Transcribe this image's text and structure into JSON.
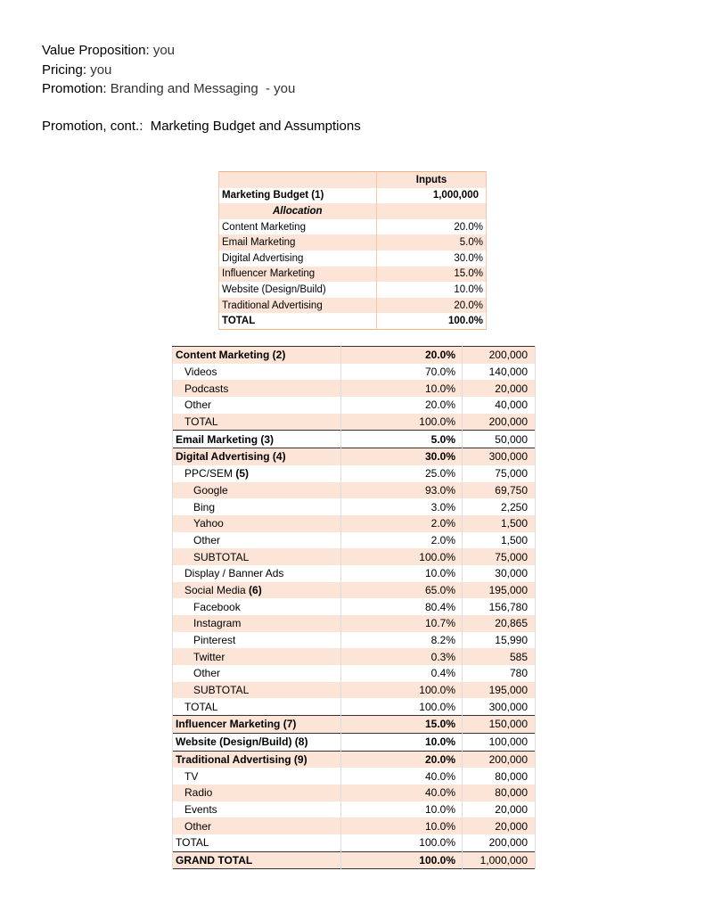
{
  "header": {
    "value_proposition": {
      "label": "Value Proposition:",
      "text": "you"
    },
    "pricing": {
      "label": "Pricing:",
      "text": "you"
    },
    "promotion": {
      "label": "Promotion:",
      "text": "Branding and Messaging  - you"
    },
    "section_title": "Promotion, cont.:  Marketing Budget and Assumptions"
  },
  "inputs_table": {
    "column_header": "Inputs",
    "budget": {
      "label": "Marketing Budget (1)",
      "value": "1,000,000"
    },
    "allocation_header": "Allocation",
    "rows": [
      [
        "Content Marketing",
        "20.0%"
      ],
      [
        "Email Marketing",
        "5.0%"
      ],
      [
        "Digital Advertising",
        "30.0%"
      ],
      [
        "Influencer Marketing",
        "15.0%"
      ],
      [
        "Website (Design/Build)",
        "10.0%"
      ],
      [
        "Traditional Advertising",
        "20.0%"
      ]
    ],
    "total": {
      "label": "TOTAL",
      "value": "100.0%"
    }
  },
  "budget_table": {
    "rows": [
      {
        "label": "Content Marketing (2)",
        "pct": "20.0%",
        "amount": "200,000"
      },
      {
        "label": "Videos",
        "pct": "70.0%",
        "amount": "140,000"
      },
      {
        "label": "Podcasts",
        "pct": "10.0%",
        "amount": "20,000"
      },
      {
        "label": "Other",
        "pct": "20.0%",
        "amount": "40,000"
      },
      {
        "label": "TOTAL",
        "pct": "100.0%",
        "amount": "200,000"
      },
      {
        "label": "Email Marketing (3)",
        "pct": "5.0%",
        "amount": "50,000"
      },
      {
        "label": "Digital Advertising (4)",
        "pct": "30.0%",
        "amount": "300,000"
      },
      {
        "label": "PPC/SEM",
        "note": "(5)",
        "pct": "25.0%",
        "amount": "75,000"
      },
      {
        "label": "Google",
        "pct": "93.0%",
        "amount": "69,750"
      },
      {
        "label": "Bing",
        "pct": "3.0%",
        "amount": "2,250"
      },
      {
        "label": "Yahoo",
        "pct": "2.0%",
        "amount": "1,500"
      },
      {
        "label": "Other",
        "pct": "2.0%",
        "amount": "1,500"
      },
      {
        "label": "SUBTOTAL",
        "pct": "100.0%",
        "amount": "75,000"
      },
      {
        "label": "Display / Banner Ads",
        "pct": "10.0%",
        "amount": "30,000"
      },
      {
        "label": "Social Media",
        "note": "(6)",
        "pct": "65.0%",
        "amount": "195,000"
      },
      {
        "label": "Facebook",
        "pct": "80.4%",
        "amount": "156,780"
      },
      {
        "label": "Instagram",
        "pct": "10.7%",
        "amount": "20,865"
      },
      {
        "label": "Pinterest",
        "pct": "8.2%",
        "amount": "15,990"
      },
      {
        "label": "Twitter",
        "pct": "0.3%",
        "amount": "585"
      },
      {
        "label": "Other",
        "pct": "0.4%",
        "amount": "780"
      },
      {
        "label": "SUBTOTAL",
        "pct": "100.0%",
        "amount": "195,000"
      },
      {
        "label": "TOTAL",
        "pct": "100.0%",
        "amount": "300,000"
      },
      {
        "label": "Influencer Marketing (7)",
        "pct": "15.0%",
        "amount": "150,000"
      },
      {
        "label": "Website (Design/Build) (8)",
        "pct": "10.0%",
        "amount": "100,000"
      },
      {
        "label": "Traditional Advertising (9)",
        "pct": "20.0%",
        "amount": "200,000"
      },
      {
        "label": "TV",
        "pct": "40.0%",
        "amount": "80,000"
      },
      {
        "label": "Radio",
        "pct": "40.0%",
        "amount": "80,000"
      },
      {
        "label": "Events",
        "pct": "10.0%",
        "amount": "20,000"
      },
      {
        "label": "Other",
        "pct": "10.0%",
        "amount": "20,000"
      },
      {
        "label": "TOTAL",
        "pct": "100.0%",
        "amount": "200,000"
      },
      {
        "label": "GRAND TOTAL",
        "pct": "100.0%",
        "amount": "1,000,000"
      }
    ]
  }
}
